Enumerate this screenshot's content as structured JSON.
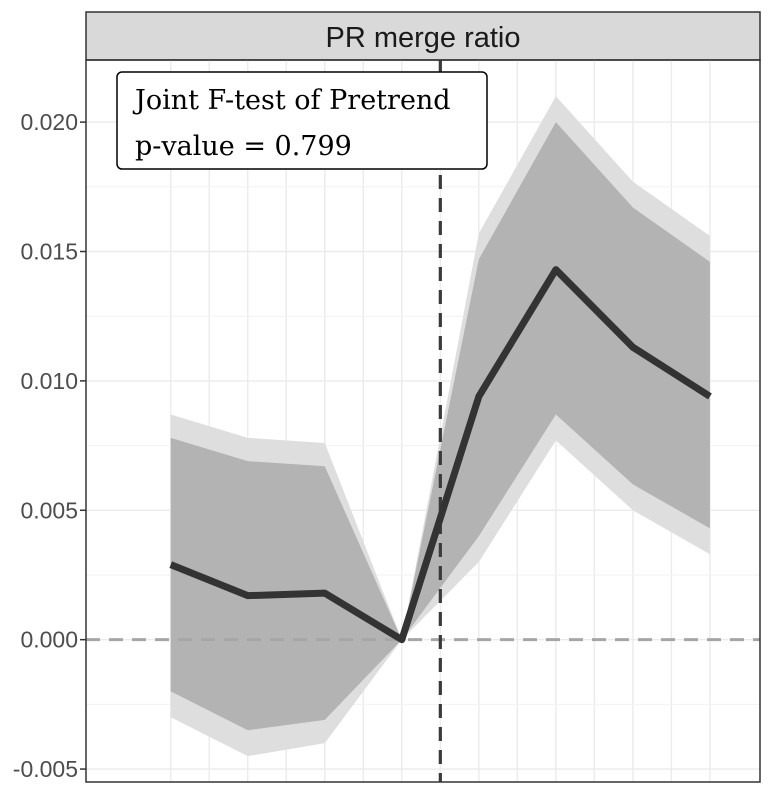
{
  "chart_data": {
    "type": "line",
    "title": "PR merge ratio",
    "xlabel": "",
    "ylabel": "",
    "x": [
      -6,
      -5,
      -4,
      -3,
      -2,
      -1,
      0,
      1,
      2,
      3,
      4,
      5,
      6,
      7
    ],
    "series": [
      {
        "line_x": [
          -6,
          -4,
          -2,
          0,
          2,
          4,
          6,
          8
        ],
        "estimate": [
          0.0029,
          0.0017,
          0.0018,
          0.0,
          0.0094,
          0.0143,
          0.0113,
          0.0094
        ],
        "ci_inner_upper": [
          0.0078,
          0.0069,
          0.0067,
          0.0,
          0.0147,
          0.02,
          0.0167,
          0.0146
        ],
        "ci_inner_lower": [
          -0.002,
          -0.0035,
          -0.0031,
          0.0,
          0.004,
          0.0087,
          0.006,
          0.0043
        ],
        "ci_outer_upper": [
          0.0087,
          0.0078,
          0.0076,
          0.0,
          0.0157,
          0.021,
          0.0177,
          0.0156
        ],
        "ci_outer_lower": [
          -0.003,
          -0.0045,
          -0.004,
          0.0,
          0.003,
          0.0077,
          0.005,
          0.0033
        ]
      }
    ],
    "ylim": [
      -0.0055,
      0.0224
    ],
    "xlim": [
      -8.2,
      9.3
    ],
    "yticks": [
      -0.005,
      0.0,
      0.005,
      0.01,
      0.015,
      0.02
    ],
    "ytick_labels": [
      "-0.005",
      "0.000",
      "0.005",
      "0.010",
      "0.015",
      "0.020"
    ],
    "x_gridlines": [
      -6,
      -5,
      -4,
      -3,
      -2,
      -1,
      0,
      1,
      2,
      3,
      4,
      5,
      6,
      7,
      8
    ],
    "hline_dashed": 0.0,
    "vline_dashed": 1,
    "annotation": {
      "line1": "Joint F-test of Pretrend",
      "line2": "p-value = 0.799"
    },
    "grid": true,
    "legend": "none",
    "colors": {
      "line": "#333333",
      "ci_inner": "#b3b3b3",
      "ci_outer": "#dedede",
      "grid": "#ebebeb",
      "strip_bg": "#d9d9d9",
      "zero_line": "#a6a6a6",
      "vline": "#3a3a3a"
    }
  }
}
